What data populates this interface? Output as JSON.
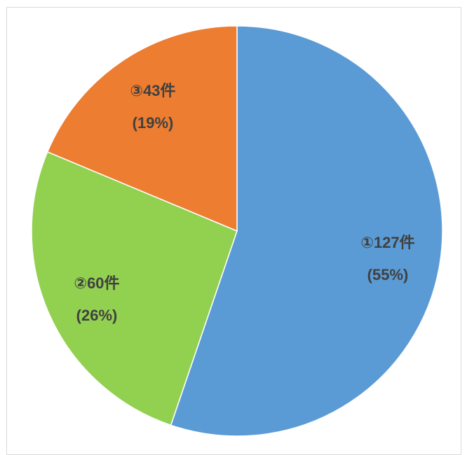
{
  "chart_data": {
    "type": "pie",
    "title": "",
    "slices": [
      {
        "name": "①",
        "count_label": "①127件",
        "pct_label": "(55%)",
        "value": 127,
        "percent": 55,
        "color": "#5b9bd5"
      },
      {
        "name": "②",
        "count_label": "②60件",
        "pct_label": "(26%)",
        "value": 60,
        "percent": 26,
        "color": "#92d050"
      },
      {
        "name": "③",
        "count_label": "③43件",
        "pct_label": "(19%)",
        "value": 43,
        "percent": 19,
        "color": "#ed7d31"
      }
    ],
    "start_angle": "top",
    "direction": "clockwise",
    "legend": "none",
    "slice_border_color": "#ffffff"
  }
}
